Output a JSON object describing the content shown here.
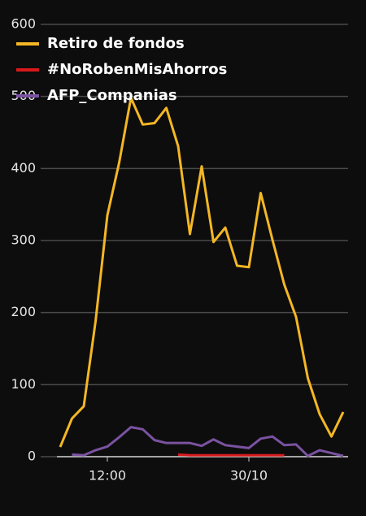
{
  "chart_data": {
    "type": "line",
    "categories": [
      null,
      null,
      null,
      null,
      "12:00",
      null,
      null,
      null,
      null,
      null,
      null,
      null,
      null,
      null,
      null,
      null,
      "30/10",
      null,
      null,
      null,
      null,
      null,
      null,
      null,
      null
    ],
    "series": [
      {
        "name": "Retiro de fondos",
        "color": "#f4b724",
        "values": [
          13.5,
          53,
          70,
          188,
          335,
          408,
          498,
          461,
          463,
          484,
          431,
          309,
          403,
          298,
          318,
          265,
          263,
          366,
          301,
          239,
          194,
          109,
          59,
          28,
          62
        ]
      },
      {
        "name": "#NoRobenMisAhorros",
        "color": "#d7191c",
        "values": [
          null,
          null,
          null,
          null,
          null,
          null,
          null,
          null,
          null,
          null,
          3,
          2,
          2,
          2,
          2,
          2,
          2,
          2,
          2,
          2,
          null,
          null,
          null,
          null,
          null
        ]
      },
      {
        "name": "AFP_Companias",
        "color": "#7b52a1",
        "values": [
          null,
          3,
          2,
          9,
          14,
          27,
          41,
          38,
          23,
          19,
          19,
          19,
          15,
          24,
          16,
          14,
          12,
          25,
          28,
          16,
          17,
          1,
          9,
          5,
          1
        ]
      }
    ],
    "ylim": [
      0,
      600
    ],
    "yticks": [
      0,
      100,
      200,
      300,
      400,
      500,
      600
    ],
    "grid": true,
    "legend": "top-left"
  }
}
